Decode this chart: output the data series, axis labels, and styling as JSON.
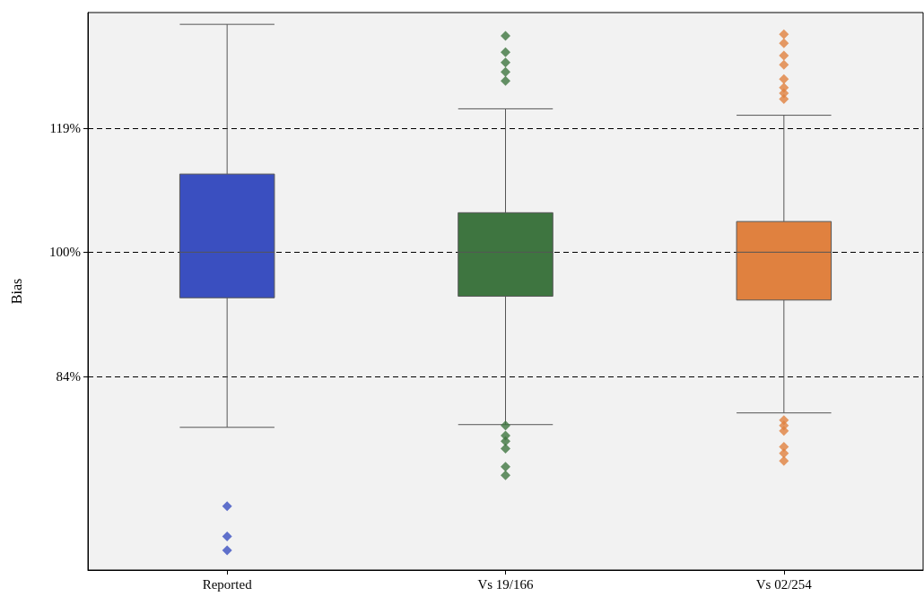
{
  "chart_data": {
    "type": "box",
    "ylabel": "Bias",
    "categories": [
      "Reported",
      "Vs 19/166",
      "Vs 02/254"
    ],
    "colors": [
      "#3a4fc0",
      "#3e7540",
      "#e0813f"
    ],
    "boxes": [
      {
        "low": 78.2,
        "q1": 93.8,
        "median": 100,
        "q3": 111.6,
        "high": 137.7,
        "outliers": [
          70.0,
          67.1,
          65.8
        ]
      },
      {
        "low": 78.5,
        "q1": 94.0,
        "median": 100,
        "q3": 105.7,
        "high": 122.3,
        "outliers": [
          135.5,
          132.4,
          130.5,
          128.8,
          127.2,
          78.4,
          77.3,
          76.7,
          75.9,
          74.0,
          73.1
        ]
      },
      {
        "low": 79.8,
        "q1": 93.5,
        "median": 100,
        "q3": 104.4,
        "high": 121.2,
        "outliers": [
          135.8,
          134.1,
          131.8,
          130.1,
          127.5,
          126,
          125,
          124,
          79.0,
          78.4,
          77.8,
          76.1,
          75.4,
          74.6
        ]
      }
    ],
    "log": "y",
    "ylim": [
      64,
      140
    ],
    "yticks": [
      {
        "value": 84,
        "label": "84%"
      },
      {
        "value": 100,
        "label": "100%"
      },
      {
        "value": 119,
        "label": "119%"
      }
    ],
    "grid": "y",
    "marker": "diamond"
  }
}
